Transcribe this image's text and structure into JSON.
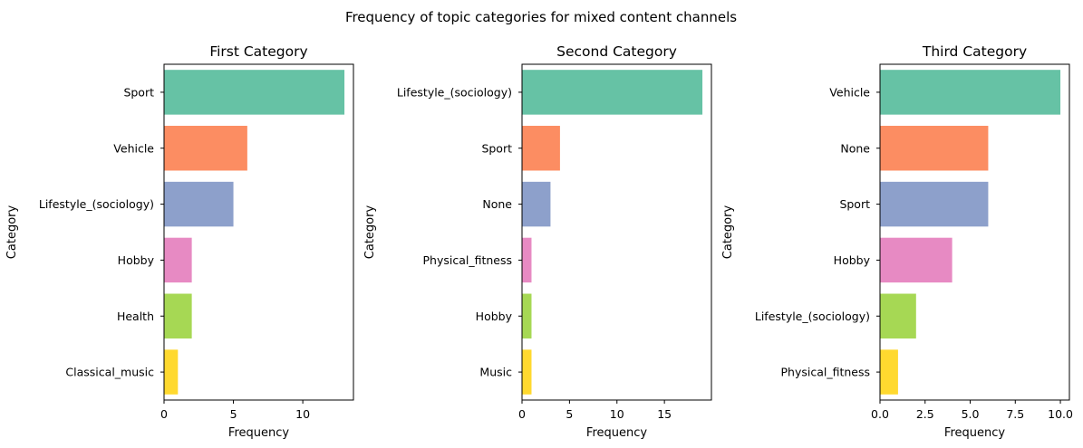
{
  "figure": {
    "suptitle": "Frequency of topic categories for mixed content channels"
  },
  "chart_data": [
    {
      "type": "bar",
      "orientation": "horizontal",
      "title": "First Category",
      "xlabel": "Frequency",
      "ylabel": "Category",
      "categories": [
        "Sport",
        "Vehicle",
        "Lifestyle_(sociology)",
        "Hobby",
        "Health",
        "Classical_music"
      ],
      "values": [
        13,
        6,
        5,
        2,
        2,
        1
      ],
      "xlim": [
        0,
        13.65
      ],
      "xticks": [
        0,
        5,
        10
      ],
      "xtick_labels": [
        "0",
        "5",
        "10"
      ],
      "colors": [
        "#66c2a5",
        "#fc8d62",
        "#8da0cb",
        "#e78ac3",
        "#a6d854",
        "#ffd92f"
      ],
      "grid": false
    },
    {
      "type": "bar",
      "orientation": "horizontal",
      "title": "Second Category",
      "xlabel": "Frequency",
      "ylabel": "Category",
      "categories": [
        "Lifestyle_(sociology)",
        "Sport",
        "None",
        "Physical_fitness",
        "Hobby",
        "Music"
      ],
      "values": [
        19,
        4,
        3,
        1,
        1,
        1
      ],
      "xlim": [
        0,
        19.95
      ],
      "xticks": [
        0,
        5,
        10,
        15
      ],
      "xtick_labels": [
        "0",
        "5",
        "10",
        "15"
      ],
      "colors": [
        "#66c2a5",
        "#fc8d62",
        "#8da0cb",
        "#e78ac3",
        "#a6d854",
        "#ffd92f"
      ],
      "grid": false
    },
    {
      "type": "bar",
      "orientation": "horizontal",
      "title": "Third Category",
      "xlabel": "Frequency",
      "ylabel": "Category",
      "categories": [
        "Vehicle",
        "None",
        "Sport",
        "Hobby",
        "Lifestyle_(sociology)",
        "Physical_fitness"
      ],
      "values": [
        10,
        6,
        6,
        4,
        2,
        1
      ],
      "xlim": [
        0,
        10.5
      ],
      "xticks": [
        0,
        2.5,
        5,
        7.5,
        10
      ],
      "xtick_labels": [
        "0.0",
        "2.5",
        "5.0",
        "7.5",
        "10.0"
      ],
      "colors": [
        "#66c2a5",
        "#fc8d62",
        "#8da0cb",
        "#e78ac3",
        "#a6d854",
        "#ffd92f"
      ],
      "grid": false
    }
  ]
}
